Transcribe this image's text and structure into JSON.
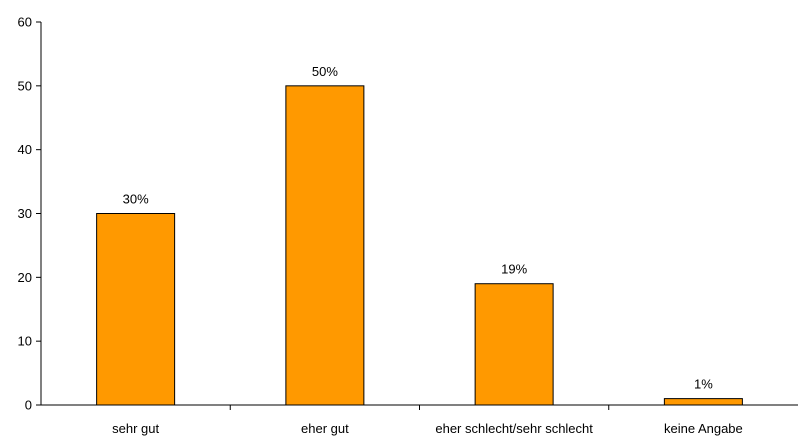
{
  "chart_data": {
    "type": "bar",
    "categories": [
      "sehr gut",
      "eher gut",
      "eher schlecht/sehr schlecht",
      "keine Angabe"
    ],
    "values": [
      30,
      50,
      19,
      1
    ],
    "data_labels": [
      "30%",
      "50%",
      "19%",
      "1%"
    ],
    "title": "",
    "xlabel": "",
    "ylabel": "",
    "ylim": [
      0,
      60
    ],
    "yticks": [
      0,
      10,
      20,
      30,
      40,
      50,
      60
    ],
    "grid": false,
    "legend": "none",
    "bar_color": "#FF9900",
    "bar_edge_color": "#000000"
  }
}
